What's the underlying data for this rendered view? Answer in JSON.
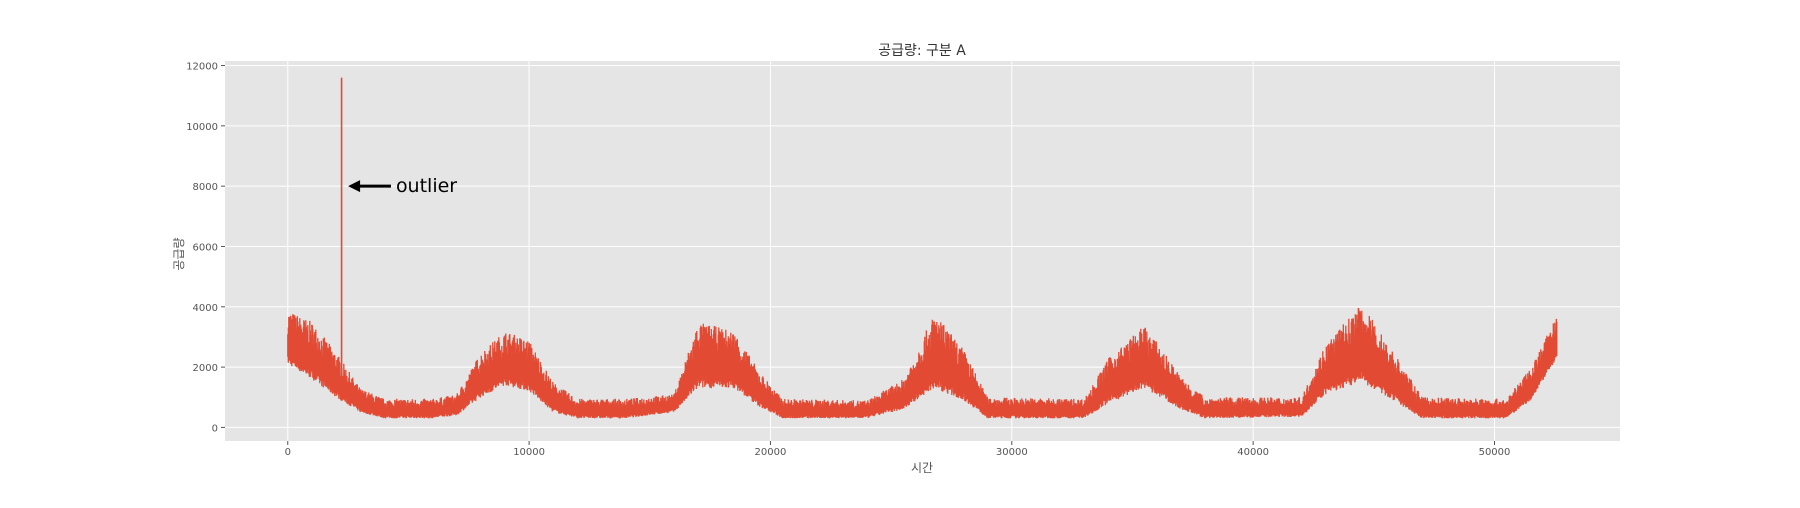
{
  "chart_data": {
    "type": "line",
    "title": "공급량: 구분 A",
    "xlabel": "시간",
    "ylabel": "공급량",
    "xlim": [
      -2600,
      55200
    ],
    "ylim": [
      -450,
      12150
    ],
    "x_ticks": [
      0,
      10000,
      20000,
      30000,
      40000,
      50000
    ],
    "y_ticks": [
      0,
      2000,
      4000,
      6000,
      8000,
      10000,
      12000
    ],
    "grid": true,
    "background": "#e5e5e5",
    "grid_color": "#ffffff",
    "tick_color": "#555555",
    "series": [
      {
        "color": "#e24a33",
        "x_range": [
          0,
          52583
        ],
        "band": [
          {
            "x": 0,
            "low": 2100,
            "high": 3900
          },
          {
            "x": 1000,
            "low": 1600,
            "high": 3500
          },
          {
            "x": 2000,
            "low": 1000,
            "high": 2500
          },
          {
            "x": 3000,
            "low": 500,
            "high": 1300
          },
          {
            "x": 4000,
            "low": 300,
            "high": 950
          },
          {
            "x": 5000,
            "low": 300,
            "high": 950
          },
          {
            "x": 6000,
            "low": 300,
            "high": 950
          },
          {
            "x": 7000,
            "low": 400,
            "high": 1100
          },
          {
            "x": 8000,
            "low": 1000,
            "high": 2500
          },
          {
            "x": 9000,
            "low": 1400,
            "high": 3200
          },
          {
            "x": 10000,
            "low": 1200,
            "high": 2900
          },
          {
            "x": 11000,
            "low": 500,
            "high": 1500
          },
          {
            "x": 12000,
            "low": 300,
            "high": 950
          },
          {
            "x": 14000,
            "low": 300,
            "high": 950
          },
          {
            "x": 16000,
            "low": 500,
            "high": 1100
          },
          {
            "x": 17000,
            "low": 1300,
            "high": 3500
          },
          {
            "x": 18500,
            "low": 1300,
            "high": 3200
          },
          {
            "x": 19500,
            "low": 700,
            "high": 1900
          },
          {
            "x": 20500,
            "low": 300,
            "high": 950
          },
          {
            "x": 24000,
            "low": 300,
            "high": 900
          },
          {
            "x": 25500,
            "low": 600,
            "high": 1600
          },
          {
            "x": 26800,
            "low": 1300,
            "high": 3800
          },
          {
            "x": 28000,
            "low": 900,
            "high": 2600
          },
          {
            "x": 29000,
            "low": 300,
            "high": 1000
          },
          {
            "x": 33000,
            "low": 300,
            "high": 950
          },
          {
            "x": 34000,
            "low": 800,
            "high": 2300
          },
          {
            "x": 35500,
            "low": 1300,
            "high": 3400
          },
          {
            "x": 37000,
            "low": 600,
            "high": 1700
          },
          {
            "x": 38000,
            "low": 300,
            "high": 1000
          },
          {
            "x": 42000,
            "low": 350,
            "high": 1000
          },
          {
            "x": 43000,
            "low": 1100,
            "high": 2800
          },
          {
            "x": 44500,
            "low": 1500,
            "high": 4100
          },
          {
            "x": 46000,
            "low": 800,
            "high": 2300
          },
          {
            "x": 47000,
            "low": 300,
            "high": 1000
          },
          {
            "x": 50500,
            "low": 300,
            "high": 950
          },
          {
            "x": 51500,
            "low": 900,
            "high": 2000
          },
          {
            "x": 52583,
            "low": 2300,
            "high": 3700
          }
        ],
        "spike": {
          "x": 2230,
          "y": 11600
        }
      }
    ],
    "annotations": [
      {
        "text": "outlier",
        "xy": [
          2500,
          8000
        ],
        "xytext": [
          4400,
          8000
        ],
        "arrow": true
      }
    ]
  }
}
